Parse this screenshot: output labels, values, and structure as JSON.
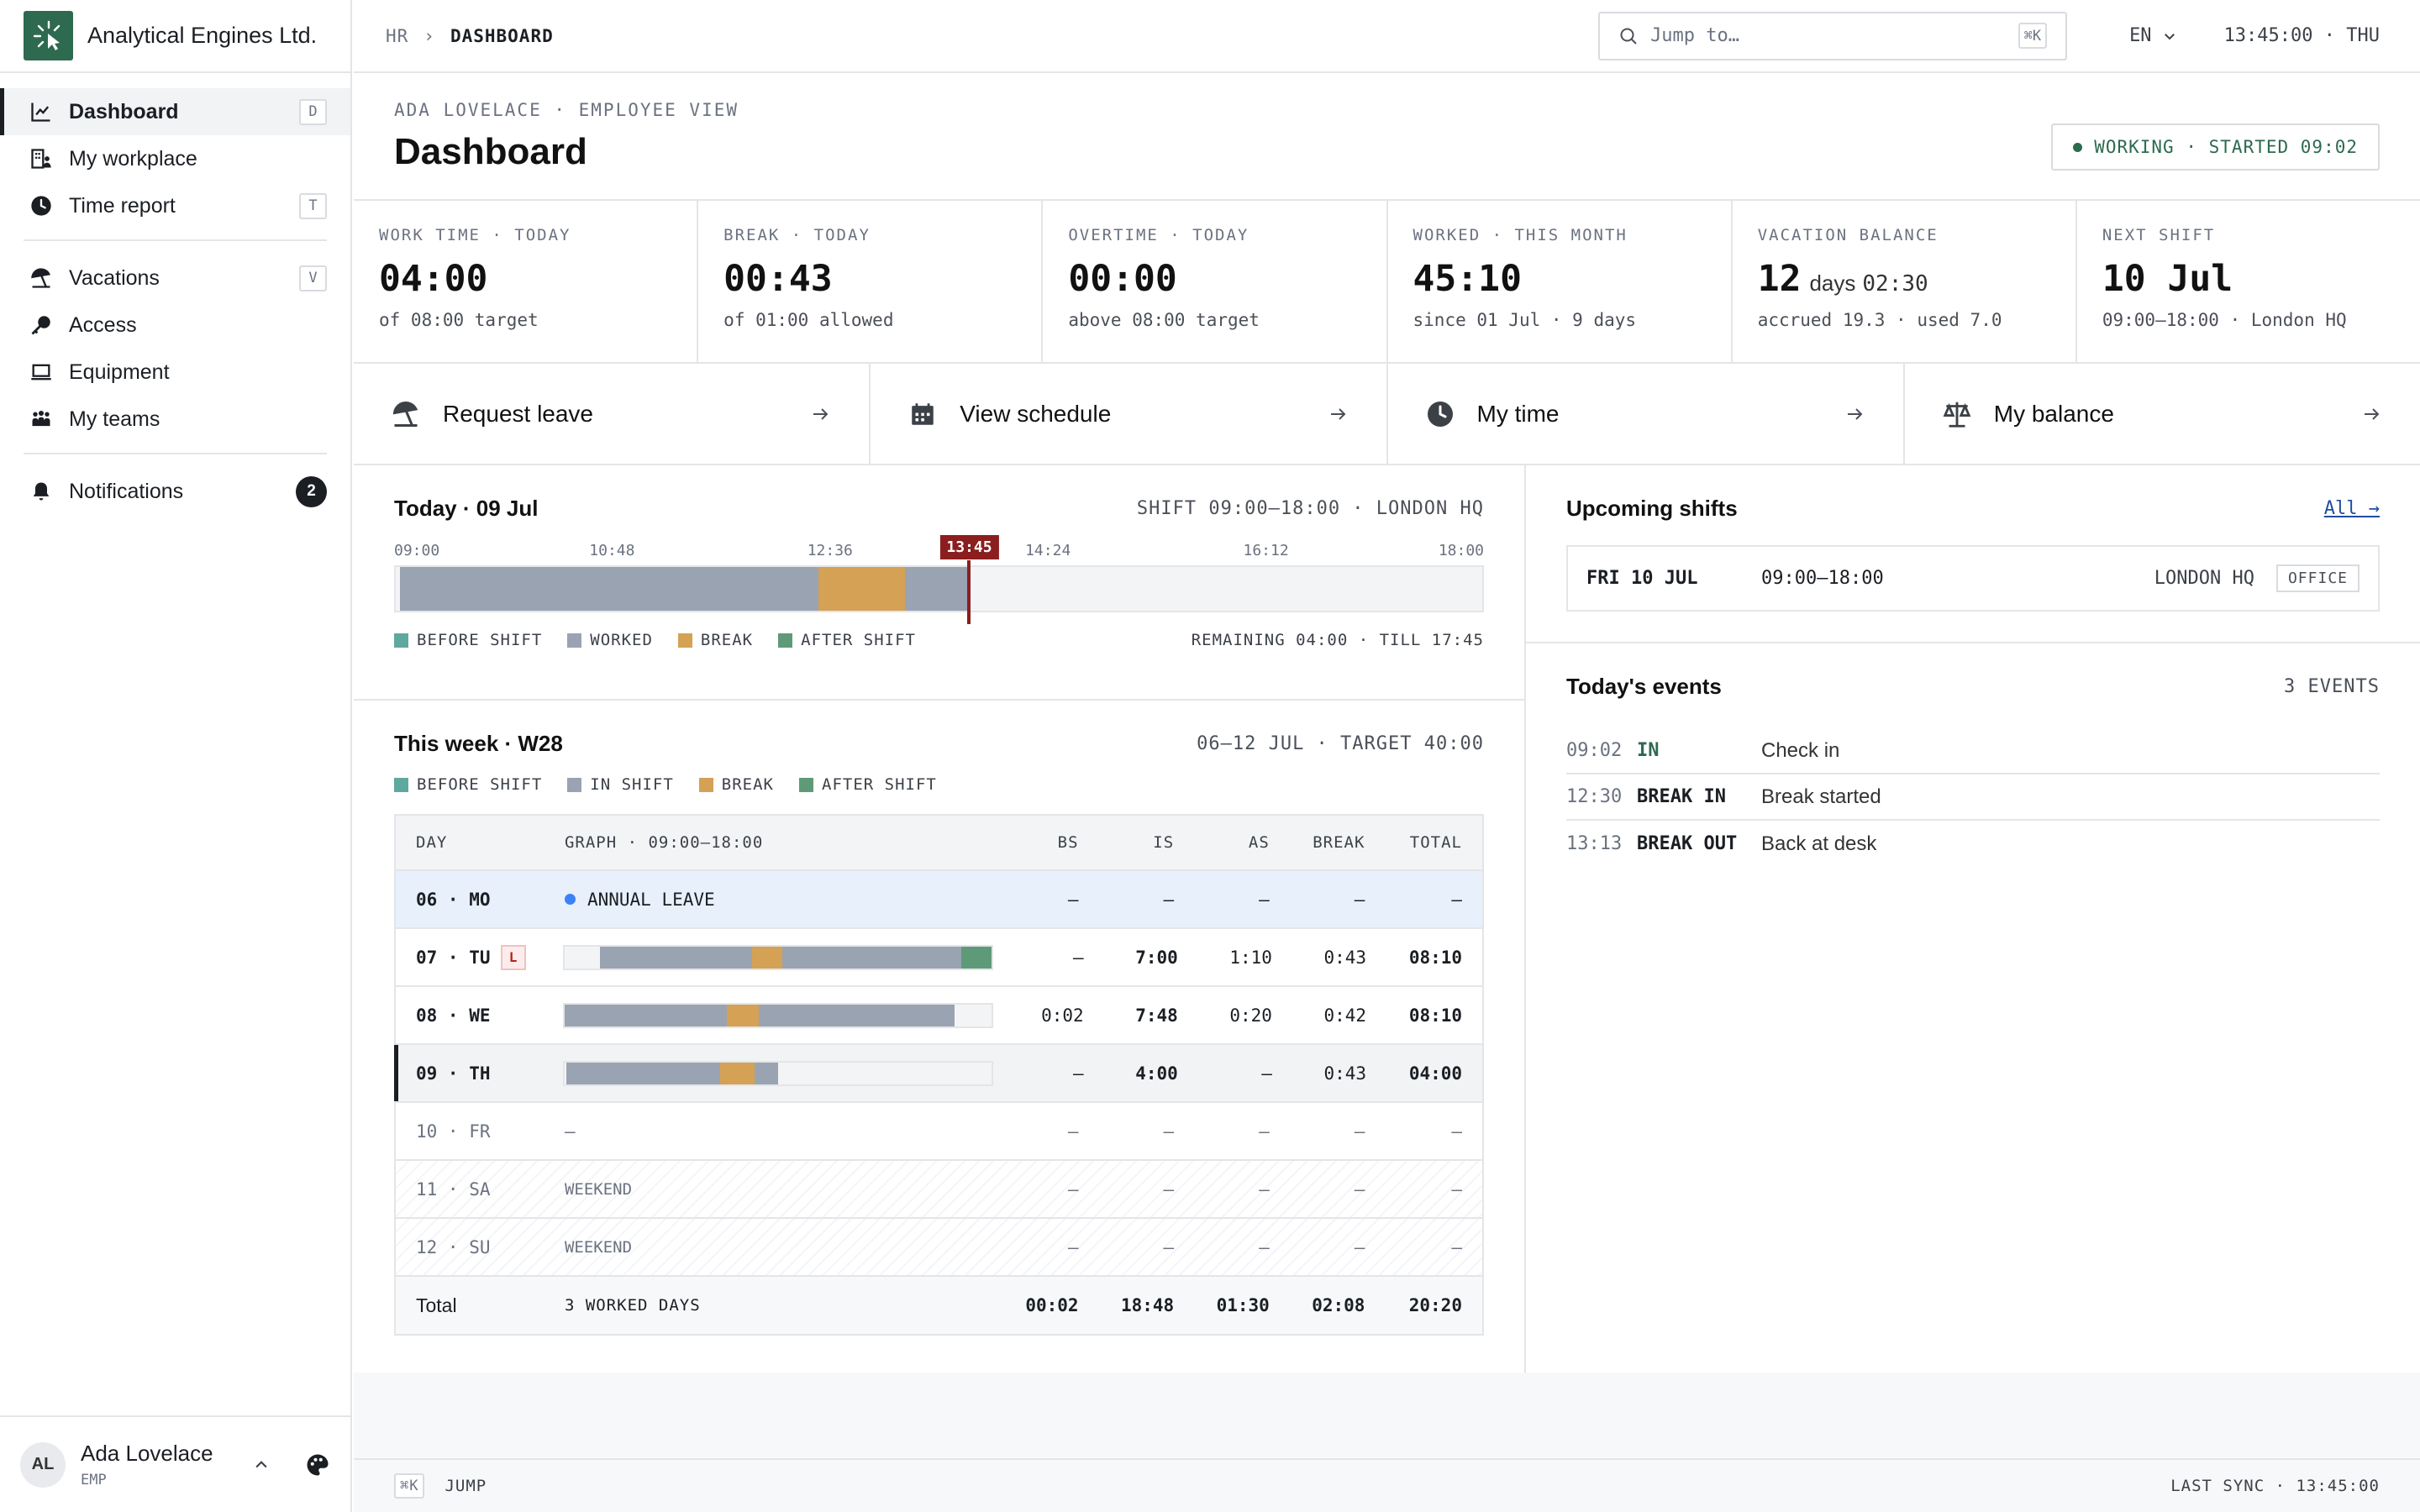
{
  "app": {
    "name": "Analytical Engines Ltd."
  },
  "colors": {
    "accent": "#2d6a4f",
    "before_shift": "#5fa8a0",
    "worked": "#9aa3b2",
    "break": "#d4a155",
    "after_shift": "#5e9a78",
    "now_marker": "#8b1e1e",
    "leave": "#3b82f6"
  },
  "sidebar": {
    "items": [
      {
        "label": "Dashboard",
        "icon": "chart-line-icon",
        "shortcut": "D",
        "active": true
      },
      {
        "label": "My workplace",
        "icon": "building-icon",
        "shortcut": ""
      },
      {
        "label": "Time report",
        "icon": "clock-icon",
        "shortcut": "T"
      },
      {
        "label": "Vacations",
        "icon": "beach-umbrella-icon",
        "shortcut": "V"
      },
      {
        "label": "Access",
        "icon": "key-icon",
        "shortcut": ""
      },
      {
        "label": "Equipment",
        "icon": "laptop-icon",
        "shortcut": ""
      },
      {
        "label": "My teams",
        "icon": "team-icon",
        "shortcut": ""
      },
      {
        "label": "Notifications",
        "icon": "bell-icon",
        "badge": "2"
      }
    ],
    "user": {
      "initials": "AL",
      "name": "Ada Lovelace",
      "role": "EMP"
    }
  },
  "topbar": {
    "breadcrumb": [
      "HR",
      "DASHBOARD"
    ],
    "search_placeholder": "Jump to…",
    "search_shortcut": "⌘K",
    "language": "EN",
    "clock": "13:45:00 · THU"
  },
  "header": {
    "eyebrow": "ADA LOVELACE · EMPLOYEE VIEW",
    "title": "Dashboard",
    "status": "WORKING · STARTED 09:02"
  },
  "stats": [
    {
      "label": "WORK TIME · TODAY",
      "value": "04:00",
      "sub": "of 08:00 target"
    },
    {
      "label": "BREAK · TODAY",
      "value": "00:43",
      "sub": "of 01:00 allowed"
    },
    {
      "label": "OVERTIME · TODAY",
      "value": "00:00",
      "sub": "above 08:00 target"
    },
    {
      "label": "WORKED · THIS MONTH",
      "value": "45:10",
      "sub": "since 01 Jul · 9 days"
    },
    {
      "label": "VACATION BALANCE",
      "value": "12",
      "unit": "days",
      "extra": "02:30",
      "sub": "accrued 19.3 · used 7.0"
    },
    {
      "label": "NEXT SHIFT",
      "value": "10 Jul",
      "sub": "09:00–18:00 · London HQ"
    }
  ],
  "actions": [
    {
      "label": "Request leave",
      "icon": "beach-umbrella-icon"
    },
    {
      "label": "View schedule",
      "icon": "calendar-icon"
    },
    {
      "label": "My time",
      "icon": "clock-icon"
    },
    {
      "label": "My balance",
      "icon": "scale-icon"
    }
  ],
  "today": {
    "title": "Today · 09 Jul",
    "shift": "SHIFT 09:00–18:00 · LONDON HQ",
    "ticks": [
      "09:00",
      "10:48",
      "12:36",
      "14:24",
      "16:12",
      "18:00"
    ],
    "now": "13:45",
    "segments": [
      {
        "kind": "worked",
        "start": "09:02",
        "end": "12:30"
      },
      {
        "kind": "break",
        "start": "12:30",
        "end": "13:13"
      },
      {
        "kind": "worked",
        "start": "13:13",
        "end": "13:45"
      }
    ],
    "legend": [
      "BEFORE SHIFT",
      "WORKED",
      "BREAK",
      "AFTER SHIFT"
    ],
    "remaining": "REMAINING 04:00 · TILL 17:45"
  },
  "week": {
    "title": "This week · W28",
    "meta": "06–12 JUL · TARGET 40:00",
    "legend": [
      "BEFORE SHIFT",
      "IN SHIFT",
      "BREAK",
      "AFTER SHIFT"
    ],
    "columns": [
      "DAY",
      "GRAPH · 09:00–18:00",
      "BS",
      "IS",
      "AS",
      "BREAK",
      "TOTAL"
    ],
    "rows": [
      {
        "day": "06 · MO",
        "type": "leave",
        "note": "ANNUAL LEAVE",
        "bs": "–",
        "is": "–",
        "as": "–",
        "brk": "–",
        "total": "–"
      },
      {
        "day": "07 · TU",
        "type": "work",
        "flag": "L",
        "bs": "–",
        "is": "7:00",
        "as": "1:10",
        "brk": "0:43",
        "total": "08:10",
        "segments": [
          {
            "kind": "worked",
            "start": 0.083,
            "end": 0.44
          },
          {
            "kind": "break",
            "start": 0.44,
            "end": 0.51
          },
          {
            "kind": "worked",
            "start": 0.51,
            "end": 0.93
          },
          {
            "kind": "after",
            "start": 0.93,
            "end": 1.0
          }
        ]
      },
      {
        "day": "08 · WE",
        "type": "work",
        "bs": "0:02",
        "is": "7:48",
        "as": "0:20",
        "brk": "0:42",
        "total": "08:10",
        "segments": [
          {
            "kind": "worked",
            "start": 0.0,
            "end": 0.38
          },
          {
            "kind": "break",
            "start": 0.38,
            "end": 0.455
          },
          {
            "kind": "worked",
            "start": 0.455,
            "end": 0.915
          }
        ]
      },
      {
        "day": "09 · TH",
        "type": "current",
        "bs": "–",
        "is": "4:00",
        "as": "–",
        "brk": "0:43",
        "total": "04:00",
        "segments": [
          {
            "kind": "worked",
            "start": 0.005,
            "end": 0.365
          },
          {
            "kind": "break",
            "start": 0.365,
            "end": 0.445
          },
          {
            "kind": "worked",
            "start": 0.445,
            "end": 0.5
          }
        ]
      },
      {
        "day": "10 · FR",
        "type": "future",
        "note": "–",
        "bs": "–",
        "is": "–",
        "as": "–",
        "brk": "–",
        "total": "–"
      },
      {
        "day": "11 · SA",
        "type": "weekend",
        "note": "WEEKEND",
        "bs": "–",
        "is": "–",
        "as": "–",
        "brk": "–",
        "total": "–"
      },
      {
        "day": "12 · SU",
        "type": "weekend",
        "note": "WEEKEND",
        "bs": "–",
        "is": "–",
        "as": "–",
        "brk": "–",
        "total": "–"
      }
    ],
    "total": {
      "label": "Total",
      "note": "3 WORKED DAYS",
      "bs": "00:02",
      "is": "18:48",
      "as": "01:30",
      "brk": "02:08",
      "total": "20:20"
    }
  },
  "upcoming": {
    "title": "Upcoming shifts",
    "all_link": "All →",
    "shifts": [
      {
        "date": "FRI 10 JUL",
        "time": "09:00–18:00",
        "location": "LONDON HQ",
        "tag": "OFFICE"
      }
    ]
  },
  "events": {
    "title": "Today's events",
    "count": "3 EVENTS",
    "items": [
      {
        "time": "09:02",
        "kind": "IN",
        "desc": "Check in"
      },
      {
        "time": "12:30",
        "kind": "BREAK IN",
        "desc": "Break started"
      },
      {
        "time": "13:13",
        "kind": "BREAK OUT",
        "desc": "Back at desk"
      }
    ]
  },
  "footer": {
    "shortcut": "⌘K",
    "jump": "JUMP",
    "sync": "LAST SYNC · 13:45:00"
  }
}
